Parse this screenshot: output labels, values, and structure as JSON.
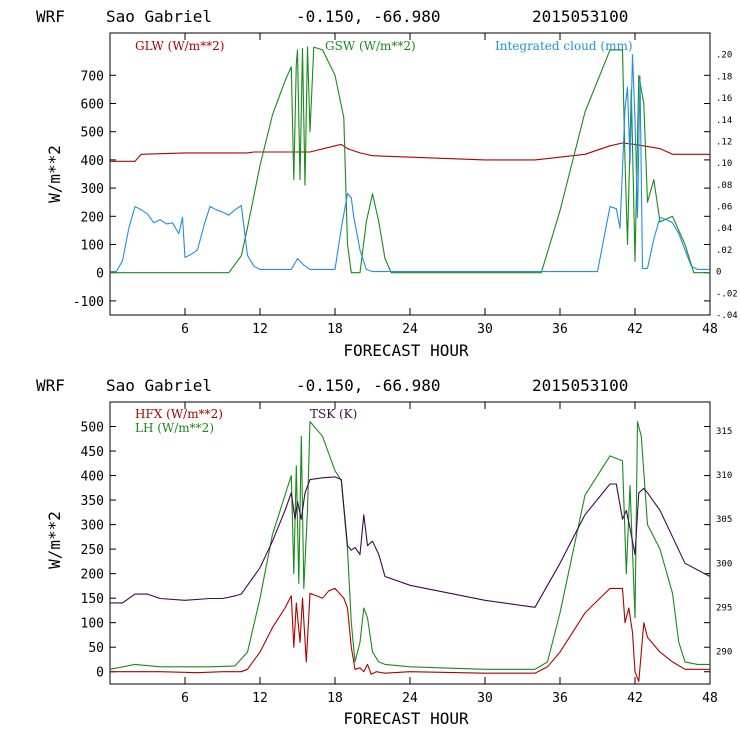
{
  "colors": {
    "red": "#b00000",
    "green": "#1a8a1a",
    "blue": "#1f8fe0",
    "purple": "#3d0a4a"
  },
  "chart_data": [
    {
      "type": "line",
      "title": {
        "model": "WRF",
        "site": "Sao Gabriel",
        "coords": "-0.150, -66.980",
        "date": "2015053100"
      },
      "xlabel": "FORECAST HOUR",
      "ylabel": "W/m**2",
      "xlim": [
        0,
        48
      ],
      "ylim": [
        -150,
        850
      ],
      "xticks": [
        "6",
        "12",
        "18",
        "24",
        "30",
        "36",
        "42",
        "48"
      ],
      "yticks": [
        "-100",
        "0",
        "100",
        "200",
        "300",
        "400",
        "500",
        "600",
        "700"
      ],
      "y2lim": [
        -0.04,
        0.22
      ],
      "y2ticks": [
        ".20",
        ".18",
        ".16",
        ".14",
        ".12",
        ".10",
        ".08",
        ".06",
        ".04",
        ".02",
        "0",
        "-.02",
        "-.04"
      ],
      "legend": {
        "glw": "GLW (W/m**2)",
        "gsw": "GSW (W/m**2)",
        "cloud": "Integrated cloud (mm)"
      },
      "series": [
        {
          "name": "GLW (W/m**2)",
          "color_key": "red",
          "axis": "left",
          "x": [
            0,
            2,
            2.5,
            6,
            11,
            11.5,
            16,
            18,
            18.5,
            19,
            20,
            21,
            30,
            34,
            38,
            40,
            41,
            42,
            44,
            45,
            48
          ],
          "y": [
            395,
            395,
            420,
            425,
            425,
            428,
            428,
            450,
            455,
            440,
            425,
            415,
            400,
            400,
            420,
            450,
            460,
            455,
            440,
            420,
            420
          ]
        },
        {
          "name": "GSW (W/m**2)",
          "color_key": "green",
          "axis": "left",
          "x": [
            0,
            9.5,
            10.5,
            11,
            12,
            13,
            14,
            14.5,
            14.7,
            14.9,
            15,
            15.2,
            15.4,
            15.6,
            15.8,
            16,
            16.3,
            17,
            18,
            18.7,
            19,
            19.3,
            19.6,
            20,
            20.5,
            21,
            21.5,
            22,
            22.5,
            34.5,
            36,
            38,
            40,
            41,
            41.2,
            41.4,
            41.7,
            42,
            42.3,
            42.7,
            43,
            43.5,
            44,
            45,
            46,
            46.7,
            48
          ],
          "y": [
            0,
            0,
            60,
            160,
            380,
            560,
            680,
            730,
            330,
            740,
            790,
            330,
            795,
            310,
            800,
            500,
            800,
            790,
            700,
            550,
            100,
            0,
            0,
            0,
            180,
            280,
            180,
            50,
            0,
            0,
            220,
            570,
            790,
            790,
            400,
            100,
            650,
            40,
            700,
            600,
            250,
            330,
            180,
            200,
            100,
            0,
            0
          ]
        },
        {
          "name": "Integrated cloud (mm)",
          "color_key": "blue",
          "axis": "right",
          "x": [
            0,
            0.5,
            1,
            1.5,
            2,
            2.5,
            3,
            3.5,
            4,
            4.5,
            5,
            5.5,
            5.8,
            6,
            6.5,
            7,
            7.5,
            8,
            8.5,
            9,
            9.5,
            10,
            10.5,
            11,
            11.5,
            12,
            14.5,
            15,
            15.5,
            16,
            18,
            18.5,
            19,
            19.3,
            19.5,
            20,
            20.5,
            21,
            23,
            34,
            37,
            39,
            40,
            40.5,
            40.8,
            41,
            41.2,
            41.4,
            41.6,
            41.8,
            42,
            42.2,
            42.4,
            42.6,
            43,
            43.5,
            44,
            44.5,
            45,
            45.5,
            46,
            46.5,
            47,
            48
          ],
          "y": [
            0,
            0,
            0.01,
            0.04,
            0.06,
            0.057,
            0.053,
            0.045,
            0.048,
            0.044,
            0.045,
            0.035,
            0.05,
            0.013,
            0.016,
            0.02,
            0.042,
            0.06,
            0.057,
            0.055,
            0.052,
            0.057,
            0.061,
            0.015,
            0.005,
            0.002,
            0.002,
            0.012,
            0.006,
            0.002,
            0.002,
            0.04,
            0.072,
            0.068,
            0.05,
            0.02,
            0.002,
            0,
            0,
            0,
            0,
            0,
            0.06,
            0.058,
            0.04,
            0.095,
            0.15,
            0.17,
            0.1,
            0.2,
            0.14,
            0.05,
            0.18,
            0.003,
            0.003,
            0.03,
            0.05,
            0.048,
            0.045,
            0.035,
            0.02,
            0.005,
            0.002,
            0.002
          ]
        }
      ]
    },
    {
      "type": "line",
      "title": {
        "model": "WRF",
        "site": "Sao Gabriel",
        "coords": "-0.150, -66.980",
        "date": "2015053100"
      },
      "xlabel": "FORECAST HOUR",
      "ylabel": "W/m**2",
      "xlim": [
        0,
        48
      ],
      "ylim": [
        -25,
        550
      ],
      "xticks": [
        "6",
        "12",
        "18",
        "24",
        "30",
        "36",
        "42",
        "48"
      ],
      "yticks": [
        "0",
        "50",
        "100",
        "150",
        "200",
        "250",
        "300",
        "350",
        "400",
        "450",
        "500"
      ],
      "y2lim": [
        286.3,
        318.3
      ],
      "y2ticks": [
        "290",
        "295",
        "300",
        "305",
        "310",
        "315"
      ],
      "legend": {
        "hfx": "HFX (W/m**2)",
        "lh": "LH (W/m**2)",
        "tsk": "TSK (K)"
      },
      "series": [
        {
          "name": "HFX (W/m**2)",
          "color_key": "red",
          "axis": "left",
          "x": [
            0,
            4,
            7,
            9,
            10.5,
            11,
            12,
            13,
            14,
            14.5,
            14.7,
            14.9,
            15.2,
            15.4,
            15.7,
            16,
            17,
            17.5,
            18,
            18.7,
            19,
            19.3,
            19.6,
            20,
            20.3,
            20.6,
            20.9,
            21.3,
            22,
            24,
            30,
            34,
            35,
            36,
            38,
            40,
            41,
            41.2,
            41.5,
            41.8,
            42,
            42.3,
            42.7,
            43,
            44,
            45,
            46,
            48
          ],
          "y": [
            0,
            0,
            -2,
            0,
            0,
            5,
            40,
            90,
            130,
            155,
            50,
            140,
            60,
            150,
            20,
            160,
            150,
            165,
            170,
            150,
            130,
            50,
            5,
            8,
            0,
            15,
            -5,
            0,
            -3,
            0,
            -3,
            -3,
            10,
            40,
            120,
            170,
            170,
            100,
            130,
            80,
            0,
            -20,
            100,
            70,
            40,
            20,
            5,
            5
          ]
        },
        {
          "name": "LH (W/m**2)",
          "color_key": "green",
          "axis": "left",
          "x": [
            0,
            2,
            4,
            8,
            10,
            11,
            12,
            13,
            14,
            14.5,
            14.7,
            14.9,
            15.1,
            15.3,
            15.5,
            15.8,
            16,
            17,
            18,
            18.5,
            19,
            19.3,
            19.6,
            20,
            20.3,
            20.6,
            21,
            21.5,
            22,
            24,
            30,
            34,
            35,
            36,
            38,
            40,
            41,
            41.3,
            41.6,
            42,
            42.2,
            42.5,
            43,
            44,
            45,
            45.5,
            46,
            47,
            48
          ],
          "y": [
            5,
            15,
            10,
            10,
            12,
            40,
            150,
            280,
            360,
            400,
            200,
            420,
            180,
            480,
            170,
            330,
            510,
            480,
            410,
            390,
            250,
            100,
            20,
            60,
            130,
            110,
            40,
            20,
            15,
            10,
            5,
            5,
            20,
            120,
            360,
            440,
            430,
            200,
            380,
            110,
            510,
            480,
            300,
            250,
            160,
            60,
            20,
            15,
            15
          ]
        },
        {
          "name": "TSK (K)",
          "color_key": "purple",
          "axis": "right",
          "x": [
            0,
            1,
            2,
            3,
            4,
            6,
            8,
            9,
            10,
            10.5,
            11,
            12,
            13,
            14,
            14.5,
            14.8,
            15,
            15.3,
            15.6,
            16,
            17,
            18,
            18.5,
            19,
            19.3,
            19.6,
            20,
            20.3,
            20.6,
            21,
            21.5,
            22,
            24,
            30,
            34,
            36,
            38,
            40,
            40.5,
            41,
            41.3,
            41.6,
            42,
            42.3,
            42.7,
            43,
            44,
            45,
            46,
            48
          ],
          "y": [
            295.5,
            295.5,
            296.5,
            296.5,
            296,
            295.8,
            296,
            296,
            296.3,
            296.5,
            297.5,
            299.5,
            302.5,
            306,
            308,
            305,
            307,
            305,
            308,
            309.5,
            309.7,
            309.8,
            309.5,
            302,
            301.5,
            301.8,
            301,
            305.5,
            302,
            302.5,
            301,
            298.5,
            297.5,
            295.8,
            295,
            300,
            305.5,
            309,
            309,
            305,
            306,
            304,
            301,
            308,
            308.5,
            308,
            306,
            303,
            300,
            298.5
          ]
        }
      ]
    }
  ]
}
